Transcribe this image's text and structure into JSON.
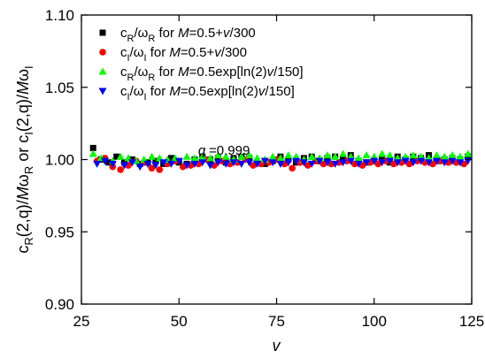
{
  "chart_data": {
    "type": "scatter",
    "annotation": "q =0.999",
    "xlabel": "v",
    "ylabel": "c_R(2,q)/Mω_R or c_I(2,q)/Mω_I",
    "xlim": [
      25,
      125
    ],
    "ylim": [
      0.9,
      1.1
    ],
    "xticks": [
      25,
      50,
      75,
      100,
      125
    ],
    "yticks": [
      0.9,
      0.95,
      1.0,
      1.05,
      1.1
    ],
    "xtick_labels": [
      "25",
      "50",
      "75",
      "100",
      "125"
    ],
    "ytick_labels": [
      "0.90",
      "0.95",
      "1.00",
      "1.05",
      "1.10"
    ],
    "grid": false,
    "legend_position": "top-left",
    "series": [
      {
        "name": "c_R/ω_R for M=0.5+v/300",
        "marker": "square",
        "color": "#000000",
        "points": [
          [
            28,
            1.008
          ],
          [
            30,
            1.0
          ],
          [
            32,
            0.998
          ],
          [
            34,
            1.002
          ],
          [
            36,
            0.998
          ],
          [
            38,
            1.0
          ],
          [
            40,
            0.997
          ],
          [
            42,
            0.998
          ],
          [
            44,
            0.999
          ],
          [
            46,
            0.997
          ],
          [
            48,
            1.001
          ],
          [
            50,
            0.998
          ],
          [
            52,
            0.997
          ],
          [
            54,
            1.0
          ],
          [
            56,
            1.002
          ],
          [
            58,
            1.0
          ],
          [
            60,
            1.001
          ],
          [
            62,
            0.998
          ],
          [
            64,
            1.001
          ],
          [
            66,
            1.002
          ],
          [
            68,
            1.001
          ],
          [
            70,
            0.998
          ],
          [
            72,
            0.997
          ],
          [
            74,
            0.999
          ],
          [
            76,
            1.002
          ],
          [
            78,
            1.0
          ],
          [
            80,
            0.998
          ],
          [
            82,
            1.001
          ],
          [
            84,
            1.002
          ],
          [
            86,
            0.999
          ],
          [
            88,
            1.001
          ],
          [
            90,
            1.002
          ],
          [
            92,
            1.0
          ],
          [
            94,
            1.003
          ],
          [
            96,
            0.999
          ],
          [
            98,
            0.998
          ],
          [
            100,
            0.999
          ],
          [
            102,
            1.001
          ],
          [
            104,
            0.998
          ],
          [
            106,
            1.002
          ],
          [
            108,
            1.0
          ],
          [
            110,
            1.002
          ],
          [
            112,
            1.001
          ],
          [
            114,
            1.003
          ],
          [
            116,
            0.999
          ],
          [
            118,
            1.0
          ],
          [
            120,
            1.001
          ],
          [
            122,
            1.0
          ],
          [
            124,
            1.002
          ]
        ]
      },
      {
        "name": "c_I/ω_I for M=0.5+v/300",
        "marker": "circle",
        "color": "#ff0000",
        "points": [
          [
            29,
            0.999
          ],
          [
            31,
            1.001
          ],
          [
            33,
            0.995
          ],
          [
            35,
            0.993
          ],
          [
            37,
            0.996
          ],
          [
            39,
            0.999
          ],
          [
            41,
            0.998
          ],
          [
            43,
            0.994
          ],
          [
            45,
            0.993
          ],
          [
            47,
            0.997
          ],
          [
            49,
            0.999
          ],
          [
            51,
            0.995
          ],
          [
            53,
            0.996
          ],
          [
            55,
            0.997
          ],
          [
            57,
            1.0
          ],
          [
            59,
            0.996
          ],
          [
            61,
            0.999
          ],
          [
            63,
            0.997
          ],
          [
            65,
            0.998
          ],
          [
            67,
            1.0
          ],
          [
            69,
            0.996
          ],
          [
            71,
            0.997
          ],
          [
            73,
            0.998
          ],
          [
            75,
            1.0
          ],
          [
            77,
            0.997
          ],
          [
            79,
            0.994
          ],
          [
            81,
            0.998
          ],
          [
            83,
            0.996
          ],
          [
            85,
            0.999
          ],
          [
            87,
            0.997
          ],
          [
            89,
            0.997
          ],
          [
            91,
            0.998
          ],
          [
            93,
            0.999
          ],
          [
            95,
            0.997
          ],
          [
            97,
            0.996
          ],
          [
            99,
            0.998
          ],
          [
            101,
            0.997
          ],
          [
            103,
            0.999
          ],
          [
            105,
            0.997
          ],
          [
            107,
            0.998
          ],
          [
            109,
            0.997
          ],
          [
            111,
            0.999
          ],
          [
            113,
            0.998
          ],
          [
            115,
            0.997
          ],
          [
            117,
            0.999
          ],
          [
            119,
            0.998
          ],
          [
            121,
            0.998
          ],
          [
            123,
            0.997
          ]
        ]
      },
      {
        "name": "c_R/ω_R for M=0.5exp[ln(2)v/150]",
        "marker": "triangle-up",
        "color": "#00ff00",
        "points": [
          [
            28,
            1.004
          ],
          [
            30,
            1.001
          ],
          [
            33,
            0.999
          ],
          [
            35,
            1.002
          ],
          [
            37,
            1.001
          ],
          [
            39,
            0.999
          ],
          [
            41,
            1.0
          ],
          [
            43,
            1.002
          ],
          [
            45,
            1.001
          ],
          [
            47,
            1.0
          ],
          [
            49,
            1.001
          ],
          [
            52,
            1.002
          ],
          [
            54,
            1.001
          ],
          [
            56,
            1.002
          ],
          [
            58,
            1.001
          ],
          [
            60,
            1.003
          ],
          [
            62,
            1.002
          ],
          [
            64,
            1.0
          ],
          [
            66,
            1.002
          ],
          [
            68,
            1.003
          ],
          [
            70,
            1.001
          ],
          [
            72,
            1.0
          ],
          [
            74,
            1.002
          ],
          [
            76,
            1.001
          ],
          [
            78,
            1.003
          ],
          [
            80,
            1.002
          ],
          [
            82,
            1.0
          ],
          [
            84,
            1.002
          ],
          [
            86,
            1.001
          ],
          [
            88,
            1.003
          ],
          [
            90,
            1.002
          ],
          [
            92,
            1.004
          ],
          [
            94,
            1.002
          ],
          [
            96,
            1.001
          ],
          [
            98,
            1.003
          ],
          [
            100,
            1.002
          ],
          [
            102,
            1.004
          ],
          [
            104,
            1.003
          ],
          [
            106,
            1.001
          ],
          [
            108,
            1.002
          ],
          [
            110,
            1.003
          ],
          [
            112,
            1.002
          ],
          [
            114,
            1.001
          ],
          [
            116,
            1.003
          ],
          [
            118,
            1.002
          ],
          [
            120,
            1.003
          ],
          [
            122,
            1.002
          ],
          [
            124,
            1.004
          ]
        ]
      },
      {
        "name": "c_I/ω_I for M=0.5exp[ln(2)v/150]",
        "marker": "triangle-down",
        "color": "#0000ff",
        "points": [
          [
            29,
            0.997
          ],
          [
            31,
            0.999
          ],
          [
            33,
            0.997
          ],
          [
            36,
            0.996
          ],
          [
            38,
            0.998
          ],
          [
            40,
            0.995
          ],
          [
            42,
            0.997
          ],
          [
            44,
            0.996
          ],
          [
            46,
            0.998
          ],
          [
            48,
            0.997
          ],
          [
            50,
            0.999
          ],
          [
            52,
            0.996
          ],
          [
            54,
            0.997
          ],
          [
            56,
            0.998
          ],
          [
            58,
            0.996
          ],
          [
            60,
            0.998
          ],
          [
            62,
            0.997
          ],
          [
            64,
            0.998
          ],
          [
            66,
            0.997
          ],
          [
            68,
            0.998
          ],
          [
            70,
            0.997
          ],
          [
            72,
            0.999
          ],
          [
            74,
            0.998
          ],
          [
            76,
            0.997
          ],
          [
            78,
            0.998
          ],
          [
            80,
            0.999
          ],
          [
            82,
            0.998
          ],
          [
            84,
            0.997
          ],
          [
            86,
            0.999
          ],
          [
            88,
            0.998
          ],
          [
            90,
            0.997
          ],
          [
            92,
            0.998
          ],
          [
            94,
            0.999
          ],
          [
            96,
            0.997
          ],
          [
            98,
            0.998
          ],
          [
            100,
            0.999
          ],
          [
            102,
            0.998
          ],
          [
            104,
            0.999
          ],
          [
            106,
            0.998
          ],
          [
            108,
            0.999
          ],
          [
            110,
            0.998
          ],
          [
            112,
            0.999
          ],
          [
            114,
            0.998
          ],
          [
            116,
            0.999
          ],
          [
            118,
            0.998
          ],
          [
            120,
            0.999
          ],
          [
            122,
            0.998
          ],
          [
            124,
            0.999
          ]
        ]
      }
    ]
  }
}
